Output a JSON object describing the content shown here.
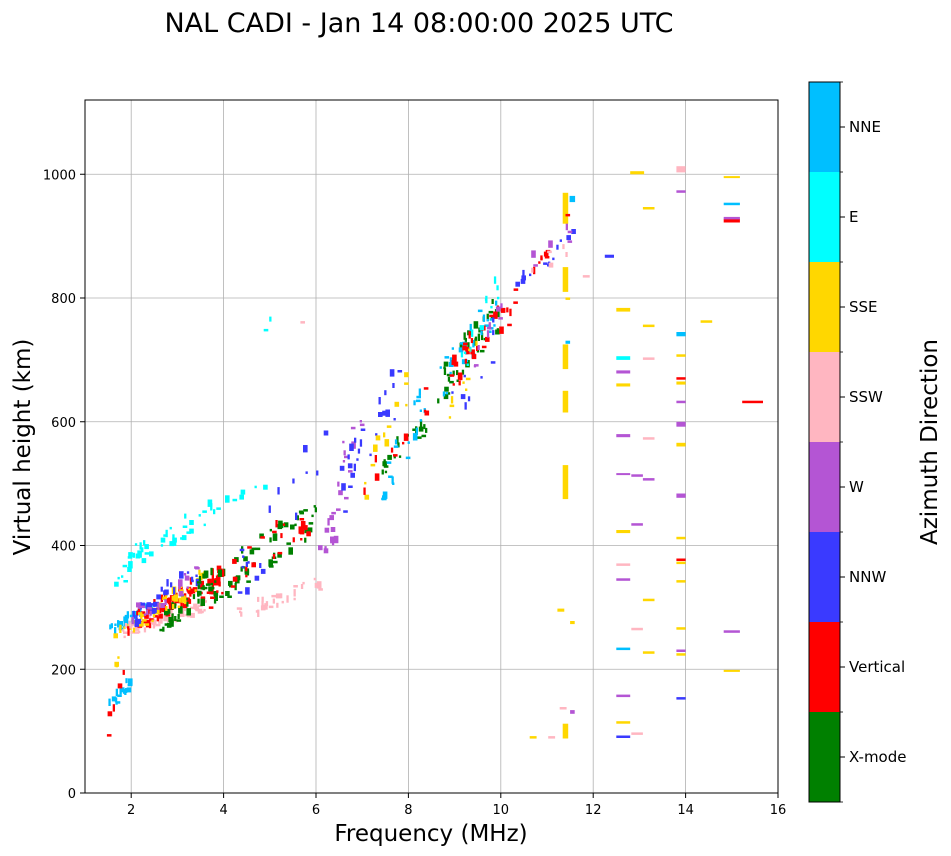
{
  "chart_data": {
    "type": "scatter",
    "title": "NAL CADI - Jan 14 08:00:00 2025 UTC",
    "xlabel": "Frequency (MHz)",
    "ylabel": "Virtual height (km)",
    "xlim": [
      1,
      16
    ],
    "ylim": [
      0,
      1120
    ],
    "xticks": [
      2,
      4,
      6,
      8,
      10,
      12,
      14,
      16
    ],
    "yticks": [
      0,
      200,
      400,
      600,
      800,
      1000
    ],
    "grid": true,
    "colorbar": {
      "label": "Azimuth Direction",
      "categories": [
        "X-mode",
        "Vertical",
        "NNW",
        "W",
        "SSW",
        "SSE",
        "E",
        "NNE"
      ],
      "colors": [
        "#008000",
        "#ff0000",
        "#3a3aff",
        "#b455d4",
        "#ffb6c1",
        "#ffd700",
        "#00ffff",
        "#00bfff"
      ]
    },
    "pixel_size": {
      "df": 0.05,
      "dh": 4
    },
    "segments": [
      {
        "category": "NNE",
        "f1": 1.45,
        "f2": 1.95,
        "h1": 130,
        "h2": 175,
        "n": 18
      },
      {
        "category": "Vertical",
        "f1": 1.45,
        "f2": 1.9,
        "h1": 95,
        "h2": 190,
        "n": 5
      },
      {
        "category": "SSE",
        "f1": 1.6,
        "f2": 1.7,
        "h1": 185,
        "h2": 220,
        "n": 3
      },
      {
        "category": "NNE",
        "f1": 1.5,
        "f2": 2.5,
        "h1": 260,
        "h2": 300,
        "n": 26
      },
      {
        "category": "SSE",
        "f1": 1.6,
        "f2": 2.4,
        "h1": 255,
        "h2": 285,
        "n": 10
      },
      {
        "category": "SSW",
        "f1": 1.8,
        "f2": 3.6,
        "h1": 258,
        "h2": 300,
        "n": 65
      },
      {
        "category": "Vertical",
        "f1": 1.9,
        "f2": 3.9,
        "h1": 265,
        "h2": 345,
        "n": 85
      },
      {
        "category": "X-mode",
        "f1": 2.6,
        "f2": 3.8,
        "h1": 270,
        "h2": 330,
        "n": 30
      },
      {
        "category": "SSE",
        "f1": 2.0,
        "f2": 3.6,
        "h1": 265,
        "h2": 345,
        "n": 35
      },
      {
        "category": "NNW",
        "f1": 2.0,
        "f2": 3.4,
        "h1": 280,
        "h2": 350,
        "n": 30
      },
      {
        "category": "W",
        "f1": 2.0,
        "f2": 3.4,
        "h1": 280,
        "h2": 350,
        "n": 20
      },
      {
        "category": "E",
        "f1": 1.6,
        "f2": 2.2,
        "h1": 320,
        "h2": 400,
        "n": 14
      },
      {
        "category": "E",
        "f1": 2.2,
        "f2": 3.8,
        "h1": 380,
        "h2": 460,
        "n": 28
      },
      {
        "category": "E",
        "f1": 3.8,
        "f2": 4.9,
        "h1": 455,
        "h2": 500,
        "n": 7
      },
      {
        "category": "X-mode",
        "f1": 3.4,
        "f2": 6.0,
        "h1": 310,
        "h2": 445,
        "n": 70
      },
      {
        "category": "Vertical",
        "f1": 3.6,
        "f2": 5.8,
        "h1": 320,
        "h2": 440,
        "n": 28
      },
      {
        "category": "SSW",
        "f1": 4.2,
        "f2": 6.1,
        "h1": 280,
        "h2": 340,
        "n": 30
      },
      {
        "category": "NNW",
        "f1": 4.3,
        "f2": 6.2,
        "h1": 340,
        "h2": 560,
        "n": 18
      },
      {
        "category": "W",
        "f1": 6.0,
        "f2": 7.0,
        "h1": 360,
        "h2": 620,
        "n": 25
      },
      {
        "category": "NNW",
        "f1": 6.3,
        "f2": 7.8,
        "h1": 450,
        "h2": 660,
        "n": 25
      },
      {
        "category": "SSE",
        "f1": 6.8,
        "f2": 8.0,
        "h1": 470,
        "h2": 660,
        "n": 12
      },
      {
        "category": "X-mode",
        "f1": 7.4,
        "f2": 8.4,
        "h1": 520,
        "h2": 600,
        "n": 20
      },
      {
        "category": "NNE",
        "f1": 7.4,
        "f2": 8.4,
        "h1": 490,
        "h2": 640,
        "n": 20
      },
      {
        "category": "Vertical",
        "f1": 7.0,
        "f2": 8.4,
        "h1": 490,
        "h2": 640,
        "n": 10
      },
      {
        "category": "E",
        "f1": 4.7,
        "f2": 5.1,
        "h1": 740,
        "h2": 770,
        "n": 2
      },
      {
        "category": "SSW",
        "f1": 5.6,
        "f2": 5.7,
        "h1": 755,
        "h2": 760,
        "n": 1
      },
      {
        "category": "X-mode",
        "f1": 8.6,
        "f2": 10.0,
        "h1": 650,
        "h2": 780,
        "n": 40
      },
      {
        "category": "NNE",
        "f1": 8.6,
        "f2": 10.0,
        "h1": 650,
        "h2": 800,
        "n": 28
      },
      {
        "category": "Vertical",
        "f1": 8.8,
        "f2": 10.3,
        "h1": 660,
        "h2": 800,
        "n": 30
      },
      {
        "category": "W",
        "f1": 9.4,
        "f2": 10.0,
        "h1": 700,
        "h2": 780,
        "n": 10
      },
      {
        "category": "E",
        "f1": 9.0,
        "f2": 10.0,
        "h1": 680,
        "h2": 830,
        "n": 12
      },
      {
        "category": "SSE",
        "f1": 8.8,
        "f2": 9.8,
        "h1": 620,
        "h2": 760,
        "n": 8
      },
      {
        "category": "NNW",
        "f1": 8.8,
        "f2": 10.4,
        "h1": 610,
        "h2": 800,
        "n": 10
      },
      {
        "category": "NNW",
        "f1": 10.4,
        "f2": 11.6,
        "h1": 830,
        "h2": 900,
        "n": 12
      },
      {
        "category": "Vertical",
        "f1": 10.6,
        "f2": 11.0,
        "h1": 830,
        "h2": 875,
        "n": 8
      },
      {
        "category": "W",
        "f1": 10.6,
        "f2": 11.6,
        "h1": 850,
        "h2": 910,
        "n": 6
      },
      {
        "category": "SSW",
        "f1": 10.6,
        "f2": 11.8,
        "h1": 830,
        "h2": 910,
        "n": 5
      }
    ],
    "marks": [
      {
        "category": "SSE",
        "f": 11.4,
        "h1": 920,
        "h2": 970,
        "w": 0.12
      },
      {
        "category": "NNE",
        "f": 11.55,
        "h1": 955,
        "h2": 965,
        "w": 0.12
      },
      {
        "category": "SSE",
        "f": 11.4,
        "h1": 810,
        "h2": 850,
        "w": 0.12
      },
      {
        "category": "SSE",
        "f": 11.4,
        "h1": 685,
        "h2": 725,
        "w": 0.12
      },
      {
        "category": "SSE",
        "f": 11.4,
        "h1": 615,
        "h2": 650,
        "w": 0.12
      },
      {
        "category": "SSE",
        "f": 11.4,
        "h1": 475,
        "h2": 530,
        "w": 0.12
      },
      {
        "category": "SSE",
        "f": 11.4,
        "h1": 88,
        "h2": 112,
        "w": 0.12
      },
      {
        "category": "SSE",
        "f": 11.3,
        "h1": 293,
        "h2": 298,
        "w": 0.15
      },
      {
        "category": "SSE",
        "f": 11.55,
        "h1": 273,
        "h2": 278,
        "w": 0.1
      },
      {
        "category": "W",
        "f": 11.55,
        "h1": 128,
        "h2": 134,
        "w": 0.1
      },
      {
        "category": "SSW",
        "f": 11.35,
        "h1": 135,
        "h2": 139,
        "w": 0.15
      },
      {
        "category": "SSE",
        "f": 10.7,
        "h1": 88,
        "h2": 92,
        "w": 0.15
      },
      {
        "category": "SSW",
        "f": 11.1,
        "h1": 88,
        "h2": 92,
        "w": 0.15
      },
      {
        "category": "NNW",
        "f": 12.35,
        "h1": 865,
        "h2": 870,
        "w": 0.2
      },
      {
        "category": "SSE",
        "f": 12.65,
        "h1": 778,
        "h2": 784,
        "w": 0.3
      },
      {
        "category": "SSW",
        "f": 11.85,
        "h1": 833,
        "h2": 837,
        "w": 0.15
      },
      {
        "category": "NNE",
        "f": 11.45,
        "h1": 726,
        "h2": 731,
        "w": 0.1
      },
      {
        "category": "SSE",
        "f": 11.45,
        "h1": 797,
        "h2": 801,
        "w": 0.1
      },
      {
        "category": "Vertical",
        "f": 11.45,
        "h1": 932,
        "h2": 936,
        "w": 0.1
      },
      {
        "category": "E",
        "f": 12.65,
        "h1": 700,
        "h2": 706,
        "w": 0.3
      },
      {
        "category": "W",
        "f": 12.65,
        "h1": 678,
        "h2": 683,
        "w": 0.3
      },
      {
        "category": "SSE",
        "f": 12.65,
        "h1": 657,
        "h2": 662,
        "w": 0.3
      },
      {
        "category": "W",
        "f": 12.65,
        "h1": 575,
        "h2": 580,
        "w": 0.3
      },
      {
        "category": "W",
        "f": 12.65,
        "h1": 514,
        "h2": 517,
        "w": 0.3
      },
      {
        "category": "SSE",
        "f": 12.65,
        "h1": 420,
        "h2": 425,
        "w": 0.3
      },
      {
        "category": "SSW",
        "f": 12.65,
        "h1": 367,
        "h2": 371,
        "w": 0.3
      },
      {
        "category": "W",
        "f": 12.65,
        "h1": 343,
        "h2": 347,
        "w": 0.3
      },
      {
        "category": "NNE",
        "f": 12.65,
        "h1": 231,
        "h2": 235,
        "w": 0.3
      },
      {
        "category": "W",
        "f": 12.65,
        "h1": 155,
        "h2": 159,
        "w": 0.3
      },
      {
        "category": "SSE",
        "f": 12.65,
        "h1": 112,
        "h2": 116,
        "w": 0.3
      },
      {
        "category": "NNW",
        "f": 12.65,
        "h1": 89,
        "h2": 93,
        "w": 0.3
      },
      {
        "category": "SSE",
        "f": 12.95,
        "h1": 1000,
        "h2": 1005,
        "w": 0.3
      },
      {
        "category": "SSE",
        "f": 13.2,
        "h1": 943,
        "h2": 947,
        "w": 0.25
      },
      {
        "category": "SSE",
        "f": 13.2,
        "h1": 753,
        "h2": 757,
        "w": 0.25
      },
      {
        "category": "SSW",
        "f": 13.2,
        "h1": 700,
        "h2": 704,
        "w": 0.25
      },
      {
        "category": "SSW",
        "f": 13.2,
        "h1": 571,
        "h2": 575,
        "w": 0.25
      },
      {
        "category": "W",
        "f": 12.95,
        "h1": 511,
        "h2": 515,
        "w": 0.25
      },
      {
        "category": "W",
        "f": 13.2,
        "h1": 505,
        "h2": 509,
        "w": 0.25
      },
      {
        "category": "W",
        "f": 12.95,
        "h1": 432,
        "h2": 436,
        "w": 0.25
      },
      {
        "category": "SSE",
        "f": 13.2,
        "h1": 310,
        "h2": 314,
        "w": 0.25
      },
      {
        "category": "SSW",
        "f": 12.95,
        "h1": 263,
        "h2": 267,
        "w": 0.25
      },
      {
        "category": "SSE",
        "f": 13.2,
        "h1": 225,
        "h2": 229,
        "w": 0.25
      },
      {
        "category": "SSW",
        "f": 12.95,
        "h1": 94,
        "h2": 98,
        "w": 0.25
      },
      {
        "category": "SSW",
        "f": 13.9,
        "h1": 1003,
        "h2": 1013,
        "w": 0.2
      },
      {
        "category": "W",
        "f": 13.9,
        "h1": 970,
        "h2": 974,
        "w": 0.2
      },
      {
        "category": "NNE",
        "f": 13.9,
        "h1": 738,
        "h2": 745,
        "w": 0.2
      },
      {
        "category": "SSE",
        "f": 13.9,
        "h1": 705,
        "h2": 709,
        "w": 0.2
      },
      {
        "category": "Vertical",
        "f": 13.9,
        "h1": 668,
        "h2": 672,
        "w": 0.2
      },
      {
        "category": "SSE",
        "f": 13.9,
        "h1": 660,
        "h2": 665,
        "w": 0.2
      },
      {
        "category": "W",
        "f": 13.9,
        "h1": 630,
        "h2": 634,
        "w": 0.2
      },
      {
        "category": "W",
        "f": 13.9,
        "h1": 592,
        "h2": 600,
        "w": 0.2
      },
      {
        "category": "SSE",
        "f": 13.9,
        "h1": 560,
        "h2": 566,
        "w": 0.2
      },
      {
        "category": "W",
        "f": 13.9,
        "h1": 477,
        "h2": 484,
        "w": 0.2
      },
      {
        "category": "SSE",
        "f": 13.9,
        "h1": 410,
        "h2": 414,
        "w": 0.2
      },
      {
        "category": "Vertical",
        "f": 13.9,
        "h1": 375,
        "h2": 379,
        "w": 0.2
      },
      {
        "category": "SSE",
        "f": 13.9,
        "h1": 370,
        "h2": 374,
        "w": 0.2
      },
      {
        "category": "SSE",
        "f": 13.9,
        "h1": 340,
        "h2": 344,
        "w": 0.2
      },
      {
        "category": "SSE",
        "f": 13.9,
        "h1": 264,
        "h2": 268,
        "w": 0.2
      },
      {
        "category": "W",
        "f": 13.9,
        "h1": 228,
        "h2": 232,
        "w": 0.2
      },
      {
        "category": "SSE",
        "f": 13.9,
        "h1": 222,
        "h2": 226,
        "w": 0.2
      },
      {
        "category": "NNW",
        "f": 13.9,
        "h1": 151,
        "h2": 155,
        "w": 0.2
      },
      {
        "category": "SSE",
        "f": 14.45,
        "h1": 760,
        "h2": 764,
        "w": 0.25
      },
      {
        "category": "SSE",
        "f": 15.0,
        "h1": 994,
        "h2": 997,
        "w": 0.35
      },
      {
        "category": "NNE",
        "f": 15.0,
        "h1": 950,
        "h2": 954,
        "w": 0.35
      },
      {
        "category": "Vertical",
        "f": 15.0,
        "h1": 922,
        "h2": 928,
        "w": 0.35
      },
      {
        "category": "W",
        "f": 15.0,
        "h1": 927,
        "h2": 931,
        "w": 0.35
      },
      {
        "category": "Vertical",
        "f": 15.45,
        "h1": 630,
        "h2": 634,
        "w": 0.45
      },
      {
        "category": "W",
        "f": 15.0,
        "h1": 259,
        "h2": 263,
        "w": 0.35
      },
      {
        "category": "SSE",
        "f": 15.0,
        "h1": 196,
        "h2": 199,
        "w": 0.35
      }
    ]
  }
}
